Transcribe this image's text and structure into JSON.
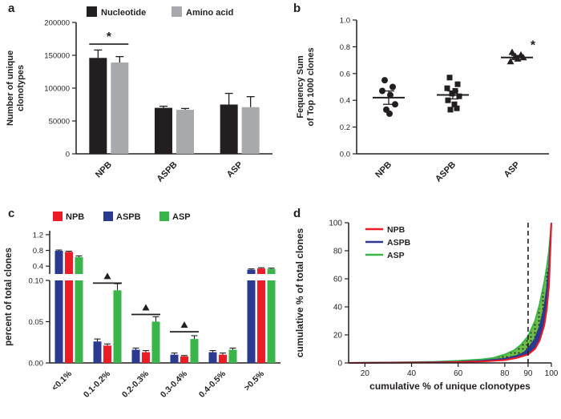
{
  "panels": [
    {
      "label": "a"
    },
    {
      "label": "b"
    },
    {
      "label": "c"
    },
    {
      "label": "d"
    }
  ],
  "colors": {
    "black": "#231f20",
    "gray": "#a7a9ac",
    "red": "#ed1c24",
    "blue": "#2b3990",
    "green": "#39b54a",
    "green_fill": "#6fbe44"
  },
  "chart_data": [
    {
      "id": "a",
      "type": "bar",
      "ylabel": "Number of unique clonotypes",
      "ylabel_lines": [
        "Number of unique",
        "clonotypes"
      ],
      "categories": [
        "NPB",
        "ASPB",
        "ASP"
      ],
      "ylim": [
        0,
        200000
      ],
      "yticks": [
        [
          0,
          "0"
        ],
        [
          50000,
          "50000"
        ],
        [
          100000,
          "100000"
        ],
        [
          150000,
          "150000"
        ],
        [
          200000,
          "200000"
        ]
      ],
      "series": [
        {
          "name": "Nucleotide",
          "color": "#231f20",
          "values": [
            146000,
            70000,
            75000
          ],
          "errors": [
            12000,
            2500,
            17000
          ]
        },
        {
          "name": "Amino acid",
          "color": "#a7a9ac",
          "values": [
            139000,
            67000,
            71000
          ],
          "errors": [
            9000,
            2000,
            16000
          ]
        }
      ],
      "significance": {
        "label": "*",
        "category": "NPB",
        "y_value": 167000
      }
    },
    {
      "id": "b",
      "type": "scatter",
      "ylabel": "Fequency Sum of Top 1000 clones",
      "ylabel_lines": [
        "Fequency Sum",
        "of Top 1000 clones"
      ],
      "categories": [
        "NPB",
        "ASPB",
        "ASP"
      ],
      "ylim": [
        0,
        1.0
      ],
      "yticks": [
        [
          0,
          "0.0"
        ],
        [
          0.2,
          "0.2"
        ],
        [
          0.4,
          "0.4"
        ],
        [
          0.6,
          "0.6"
        ],
        [
          0.8,
          "0.8"
        ],
        [
          1.0,
          "1.0"
        ]
      ],
      "series": [
        {
          "name": "NPB",
          "marker": "circle",
          "points": [
            0.55,
            0.5,
            0.47,
            0.44,
            0.37,
            0.33,
            0.3
          ],
          "jitter": [
            -5,
            5,
            -8,
            2,
            8,
            -3,
            1
          ],
          "mean": 0.42,
          "sem": 0.05,
          "significance": ""
        },
        {
          "name": "ASPB",
          "marker": "square",
          "points": [
            0.57,
            0.52,
            0.49,
            0.47,
            0.45,
            0.43,
            0.4,
            0.37,
            0.34,
            0.33
          ],
          "jitter": [
            -4,
            6,
            -7,
            3,
            -1,
            8,
            -6,
            2,
            5,
            -3
          ],
          "mean": 0.44,
          "sem": 0.03,
          "significance": ""
        },
        {
          "name": "ASP",
          "marker": "triangle",
          "points": [
            0.76,
            0.74,
            0.73,
            0.72,
            0.71,
            0.69
          ],
          "jitter": [
            -6,
            5,
            -2,
            8,
            1,
            -8
          ],
          "mean": 0.72,
          "sem": 0.015,
          "significance": "*"
        }
      ]
    },
    {
      "id": "c",
      "type": "bar",
      "ylabel": "percent of total clones",
      "categories": [
        "<0.1%",
        "0.1-0.2%",
        "0.2-0.3%",
        "0.3-0.4%",
        "0.4-0.5%",
        ">0.5%"
      ],
      "axis_break": {
        "lower_range": [
          0,
          0.1
        ],
        "lower_ticks": [
          [
            0,
            "0.00"
          ],
          [
            0.05,
            "0.05"
          ],
          [
            0.1,
            "0.10"
          ]
        ],
        "upper_ticks": [
          [
            0.4,
            "0.4"
          ],
          [
            0.8,
            "0.8"
          ],
          [
            1.2,
            "1.2"
          ]
        ]
      },
      "legend": [
        {
          "label": "NPB",
          "color": "#ed1c24"
        },
        {
          "label": "ASPB",
          "color": "#2b3990"
        },
        {
          "label": "ASP",
          "color": "#39b54a"
        }
      ],
      "series": [
        {
          "name": "ASPB",
          "color": "#2b3990",
          "values": [
            0.79,
            0.026,
            0.016,
            0.01,
            0.013,
            0.31
          ],
          "errors": [
            0.02,
            0.003,
            0.002,
            0.002,
            0.002,
            0.02
          ]
        },
        {
          "name": "NPB",
          "color": "#ed1c24",
          "values": [
            0.76,
            0.021,
            0.013,
            0.008,
            0.01,
            0.34
          ],
          "errors": [
            0.02,
            0.002,
            0.002,
            0.001,
            0.002,
            0.02
          ]
        },
        {
          "name": "ASP",
          "color": "#39b54a",
          "values": [
            0.63,
            0.088,
            0.05,
            0.029,
            0.016,
            0.33
          ],
          "errors": [
            0.03,
            0.008,
            0.006,
            0.004,
            0.002,
            0.02
          ]
        }
      ],
      "significance": {
        "marker": "triangle",
        "categories": [
          "0.1-0.2%",
          "0.2-0.3%",
          "0.3-0.4%"
        ]
      }
    },
    {
      "id": "d",
      "type": "line",
      "xlabel": "cumulative % of unique clonotypes",
      "ylabel": "cumulative % of total clones",
      "xlim": [
        13,
        100
      ],
      "ylim": [
        0,
        100
      ],
      "xticks": [
        [
          20,
          "20"
        ],
        [
          40,
          "40"
        ],
        [
          60,
          "60"
        ],
        [
          80,
          "80"
        ],
        [
          90,
          "90"
        ],
        [
          100,
          "100"
        ]
      ],
      "yticks": [
        [
          0,
          "0"
        ],
        [
          20,
          "20"
        ],
        [
          40,
          "40"
        ],
        [
          60,
          "60"
        ],
        [
          80,
          "80"
        ],
        [
          100,
          "100"
        ]
      ],
      "reference_line_x": 90,
      "series": [
        {
          "name": "NPB",
          "color": "#ed1c24",
          "fill": "#ffffff",
          "x": [
            13,
            50,
            70,
            80,
            85,
            90,
            93,
            95,
            97,
            98,
            99,
            100
          ],
          "y": [
            0,
            0.3,
            1,
            2,
            3.5,
            6,
            10,
            16,
            27,
            38,
            55,
            100
          ]
        },
        {
          "name": "ASPB",
          "color": "#2b3990",
          "fill": "#2b3990",
          "x": [
            13,
            40,
            60,
            70,
            80,
            85,
            88,
            90,
            93,
            95,
            97,
            98,
            99,
            100
          ],
          "y": [
            0,
            0.3,
            0.8,
            1.5,
            3,
            5,
            7,
            10,
            17,
            26,
            40,
            52,
            68,
            100
          ]
        },
        {
          "name": "ASP",
          "color": "#39b54a",
          "fill": "pattern",
          "x": [
            13,
            30,
            50,
            60,
            70,
            75,
            80,
            84,
            87,
            90,
            93,
            95,
            97,
            98,
            99,
            100
          ],
          "y": [
            0,
            0.3,
            0.8,
            1.5,
            2.5,
            3.5,
            6,
            9,
            13,
            19,
            30,
            42,
            58,
            68,
            80,
            100
          ]
        }
      ]
    }
  ]
}
